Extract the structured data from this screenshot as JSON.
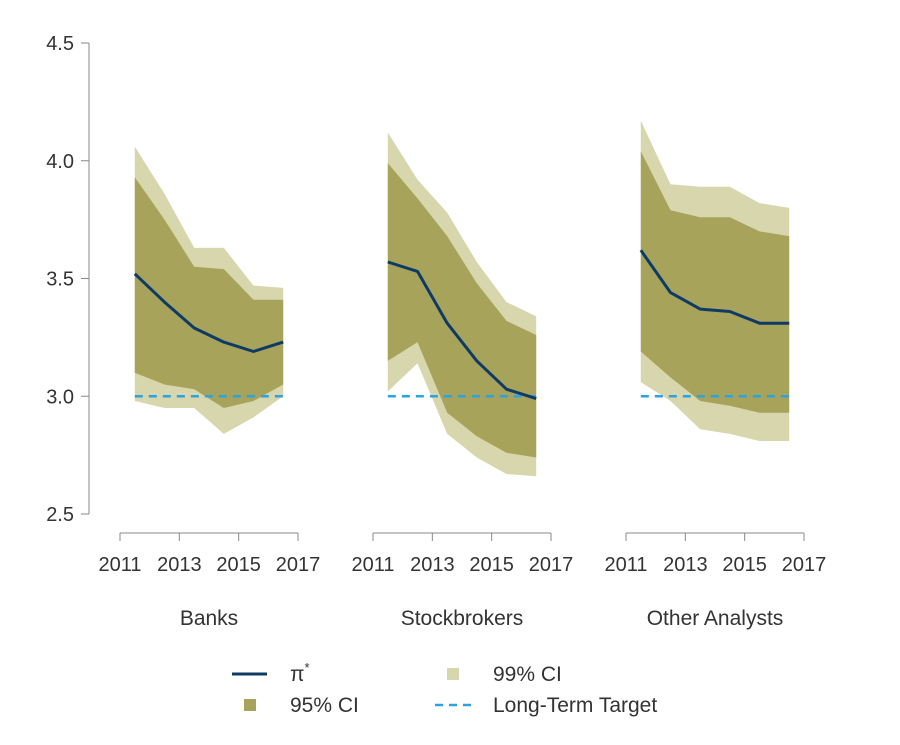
{
  "chart_data": {
    "type": "area",
    "y_axis": {
      "ylim": [
        2.5,
        4.5
      ],
      "ticks": [
        2.5,
        3.0,
        3.5,
        4.0,
        4.5
      ],
      "tick_labels": [
        "2.5",
        "3.0",
        "3.5",
        "4.0",
        "4.5"
      ]
    },
    "x_axis": {
      "xlim": [
        2011,
        2017
      ],
      "ticks": [
        2011,
        2013,
        2015,
        2017
      ],
      "tick_labels": [
        "2011",
        "2013",
        "2015",
        "2017"
      ]
    },
    "target": 3.0,
    "panels": [
      {
        "name": "Banks",
        "x": [
          2011.5,
          2012.5,
          2013.5,
          2014.5,
          2015.5,
          2016.5
        ],
        "pi_star": [
          3.52,
          3.4,
          3.29,
          3.23,
          3.19,
          3.23
        ],
        "ci95_lower": [
          3.1,
          3.05,
          3.03,
          2.95,
          2.98,
          3.05
        ],
        "ci95_upper": [
          3.93,
          3.75,
          3.55,
          3.54,
          3.41,
          3.41
        ],
        "ci99_lower": [
          2.98,
          2.95,
          2.95,
          2.84,
          2.91,
          3.0
        ],
        "ci99_upper": [
          4.06,
          3.86,
          3.63,
          3.63,
          3.47,
          3.46
        ]
      },
      {
        "name": "Stockbrokers",
        "x": [
          2011.5,
          2012.5,
          2013.5,
          2014.5,
          2015.5,
          2016.5
        ],
        "pi_star": [
          3.57,
          3.53,
          3.31,
          3.15,
          3.03,
          2.99
        ],
        "ci95_lower": [
          3.15,
          3.23,
          2.93,
          2.83,
          2.76,
          2.74
        ],
        "ci95_upper": [
          3.99,
          3.84,
          3.68,
          3.48,
          3.32,
          3.26
        ],
        "ci99_lower": [
          3.02,
          3.14,
          2.84,
          2.74,
          2.67,
          2.66
        ],
        "ci99_upper": [
          4.12,
          3.92,
          3.78,
          3.57,
          3.4,
          3.34
        ]
      },
      {
        "name": "Other Analysts",
        "x": [
          2011.5,
          2012.5,
          2013.5,
          2014.5,
          2015.5,
          2016.5
        ],
        "pi_star": [
          3.62,
          3.44,
          3.37,
          3.36,
          3.31,
          3.31
        ],
        "ci95_lower": [
          3.19,
          3.08,
          2.98,
          2.96,
          2.93,
          2.93
        ],
        "ci95_upper": [
          4.04,
          3.79,
          3.76,
          3.76,
          3.7,
          3.68
        ],
        "ci99_lower": [
          3.06,
          2.98,
          2.86,
          2.84,
          2.81,
          2.81
        ],
        "ci99_upper": [
          4.17,
          3.9,
          3.89,
          3.89,
          3.82,
          3.8
        ]
      }
    ],
    "legend": {
      "placement": "bottom",
      "items": [
        {
          "key": "pi_star",
          "label": "π*",
          "style": "line",
          "color": "#0d3b66"
        },
        {
          "key": "ci99",
          "label": "99% CI",
          "style": "square",
          "color": "#d7d6ac"
        },
        {
          "key": "ci95",
          "label": "95% CI",
          "style": "square",
          "color": "#a8a35a"
        },
        {
          "key": "target",
          "label": "Long-Term Target",
          "style": "dashed",
          "color": "#2aa3e2"
        }
      ]
    },
    "colors": {
      "ci99": "#d7d6ac",
      "ci95": "#a8a35a",
      "pi_star": "#0d3b66",
      "target": "#2aa3e2",
      "axis": "#888888"
    }
  }
}
